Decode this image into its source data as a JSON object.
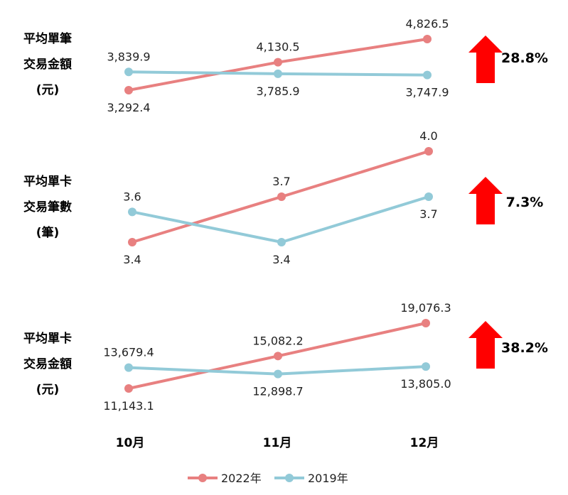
{
  "colors": {
    "series_2022": "#E88080",
    "series_2019": "#92CAD8",
    "arrow": "#FF0000"
  },
  "legend": [
    "2022年",
    "2019年"
  ],
  "chart_data": [
    {
      "type": "line",
      "title_lines": [
        "平均單筆",
        "交易金額",
        "(元)"
      ],
      "categories": [
        "10月",
        "11月",
        "12月"
      ],
      "series": [
        {
          "name": "2022年",
          "values": [
            3292.4,
            4130.5,
            4826.5
          ],
          "labels": [
            "3,292.4",
            "4,130.5",
            "4,826.5"
          ]
        },
        {
          "name": "2019年",
          "values": [
            3839.9,
            3785.9,
            3747.9
          ],
          "labels": [
            "3,839.9",
            "3,785.9",
            "3,747.9"
          ]
        }
      ],
      "change": "28.8%"
    },
    {
      "type": "line",
      "title_lines": [
        "平均單卡",
        "交易筆數",
        "(筆)"
      ],
      "categories": [
        "10月",
        "11月",
        "12月"
      ],
      "series": [
        {
          "name": "2022年",
          "values": [
            3.4,
            3.7,
            4.0
          ],
          "labels": [
            "3.4",
            "3.7",
            "4.0"
          ]
        },
        {
          "name": "2019年",
          "values": [
            3.6,
            3.4,
            3.7
          ],
          "labels": [
            "3.6",
            "3.4",
            "3.7"
          ]
        }
      ],
      "change": "7.3%"
    },
    {
      "type": "line",
      "title_lines": [
        "平均單卡",
        "交易金額",
        "(元)"
      ],
      "categories": [
        "10月",
        "11月",
        "12月"
      ],
      "series": [
        {
          "name": "2022年",
          "values": [
            11143.1,
            15082.2,
            19076.3
          ],
          "labels": [
            "11,143.1",
            "15,082.2",
            "19,076.3"
          ]
        },
        {
          "name": "2019年",
          "values": [
            13679.4,
            12898.7,
            13805.0
          ],
          "labels": [
            "13,679.4",
            "12,898.7",
            "13,805.0"
          ]
        }
      ],
      "change": "38.2%"
    }
  ]
}
